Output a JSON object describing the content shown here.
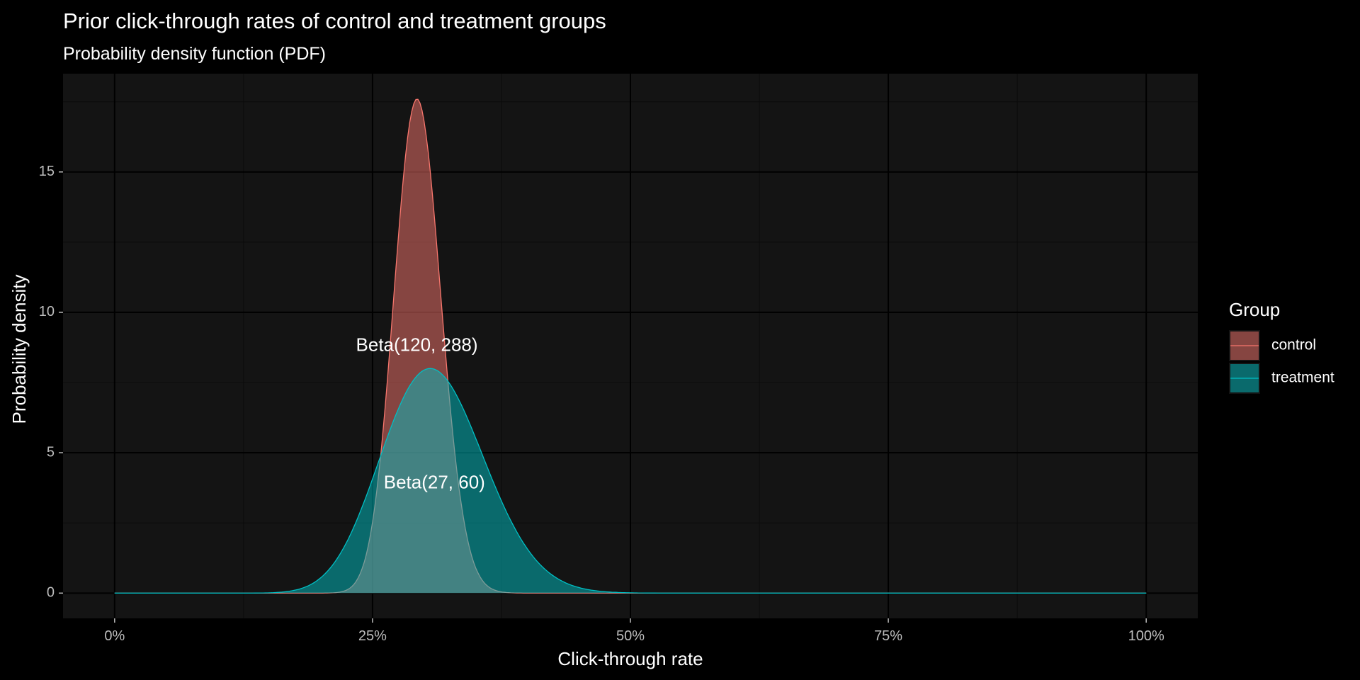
{
  "chart_data": {
    "type": "area",
    "title": "Prior click-through rates of control and treatment groups",
    "subtitle": "Probability density function (PDF)",
    "xlabel": "Click-through rate",
    "ylabel": "Probability density",
    "xlim": [
      -0.05,
      1.05
    ],
    "ylim": [
      -0.9,
      18.5
    ],
    "x_ticks": [
      0,
      0.25,
      0.5,
      0.75,
      1.0
    ],
    "x_tick_labels": [
      "0%",
      "25%",
      "50%",
      "75%",
      "100%"
    ],
    "y_ticks": [
      0,
      5,
      10,
      15
    ],
    "y_tick_labels": [
      "0",
      "5",
      "10",
      "15"
    ],
    "grid": true,
    "legend": {
      "title": "Group",
      "position": "right"
    },
    "series": [
      {
        "name": "control",
        "distribution": "Beta",
        "alpha": 120,
        "beta": 288,
        "peak_x": 0.293,
        "peak_y": 17.6,
        "fill": "#f8766d",
        "fill_opacity": 0.5,
        "line": "#f8766d"
      },
      {
        "name": "treatment",
        "distribution": "Beta",
        "alpha": 27,
        "beta": 60,
        "peak_x": 0.306,
        "peak_y": 8.0,
        "fill": "#00bfc4",
        "fill_opacity": 0.5,
        "line": "#00bfc4"
      }
    ],
    "annotations": [
      {
        "text": "Beta(120, 288)",
        "x": 0.293,
        "y": 8.8
      },
      {
        "text": "Beta(27, 60)",
        "x": 0.31,
        "y": 3.9
      }
    ]
  },
  "colors": {
    "background": "#000000",
    "panel": "#141414",
    "grid_major": "#000000",
    "grid_minor": "#0b0b0b"
  }
}
